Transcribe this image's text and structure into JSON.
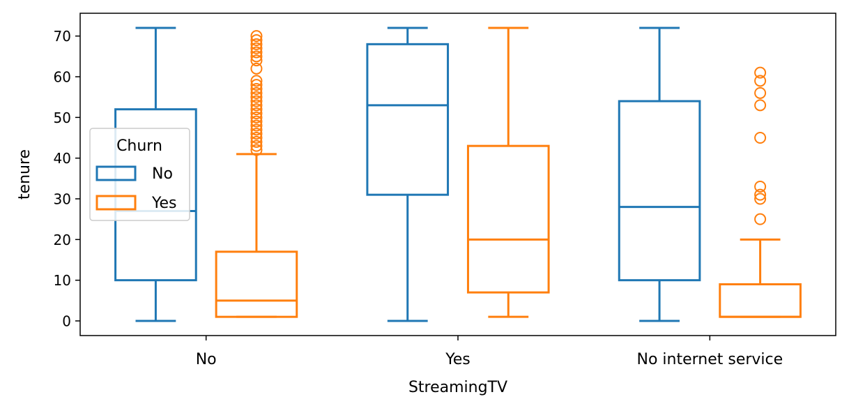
{
  "chart_data": {
    "type": "box",
    "xlabel": "StreamingTV",
    "ylabel": "tenure",
    "ylim": [
      -3.6,
      75.6
    ],
    "yticks": [
      0,
      10,
      20,
      30,
      40,
      50,
      60,
      70
    ],
    "categories": [
      "No",
      "Yes",
      "No internet service"
    ],
    "legend": {
      "title": "Churn",
      "placement": "center-left",
      "entries": [
        "No",
        "Yes"
      ]
    },
    "colors": {
      "No": "#1f77b4",
      "Yes": "#ff7f0e"
    },
    "series": [
      {
        "name": "No",
        "color": "#1f77b4",
        "boxes": [
          {
            "whisker_low": 0,
            "q1": 10,
            "median": 27,
            "q3": 52,
            "whisker_high": 72,
            "outliers": []
          },
          {
            "whisker_low": 0,
            "q1": 31,
            "median": 53,
            "q3": 68,
            "whisker_high": 72,
            "outliers": []
          },
          {
            "whisker_low": 0,
            "q1": 10,
            "median": 28,
            "q3": 54,
            "whisker_high": 72,
            "outliers": []
          }
        ]
      },
      {
        "name": "Yes",
        "color": "#ff7f0e",
        "boxes": [
          {
            "whisker_low": 1,
            "q1": 1,
            "median": 5,
            "q3": 17,
            "whisker_high": 41,
            "outliers": [
              42,
              43,
              44,
              45,
              46,
              47,
              48,
              49,
              50,
              51,
              52,
              53,
              54,
              55,
              56,
              57,
              58,
              59,
              62,
              64,
              65,
              66,
              67,
              68,
              69,
              70
            ]
          },
          {
            "whisker_low": 1,
            "q1": 7,
            "median": 20,
            "q3": 43,
            "whisker_high": 72,
            "outliers": []
          },
          {
            "whisker_low": 1,
            "q1": 1,
            "median": 1,
            "q3": 9,
            "whisker_high": 20,
            "outliers": [
              25,
              30,
              31,
              33,
              45,
              53,
              56,
              59,
              61
            ]
          }
        ]
      }
    ]
  }
}
